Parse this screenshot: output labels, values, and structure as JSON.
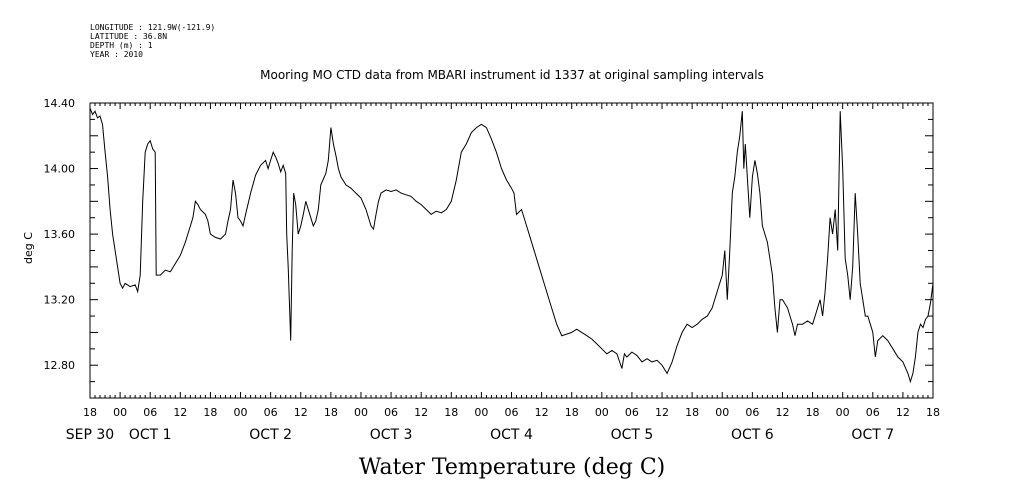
{
  "meta": {
    "longitude": "LONGITUDE : 121.9W(-121.9)",
    "latitude": "LATITUDE : 36.8N",
    "depth": "DEPTH (m) : 1",
    "year": "YEAR : 2010"
  },
  "chart_data": {
    "type": "line",
    "title": "Mooring MO CTD data from MBARI instrument id 1337 at original sampling intervals",
    "xlabel": "Water Temperature (deg C)",
    "ylabel": "deg C",
    "xlim_hours": [
      0,
      168
    ],
    "x_start": "SEP 30 18:00",
    "ylim": [
      12.6,
      14.4
    ],
    "y_ticks": [
      "12.80",
      "13.20",
      "13.60",
      "14.00",
      "14.40"
    ],
    "y_tick_values": [
      12.8,
      13.2,
      13.6,
      14.0,
      14.4
    ],
    "x_hour_labels": [
      "18",
      "00",
      "06",
      "12",
      "18",
      "00",
      "06",
      "12",
      "18",
      "00",
      "06",
      "12",
      "18",
      "00",
      "06",
      "12",
      "18",
      "00",
      "06",
      "12",
      "18",
      "00",
      "06",
      "12",
      "18",
      "00",
      "06",
      "12",
      "18"
    ],
    "day_labels": [
      "SEP 30",
      "OCT  1",
      "OCT  2",
      "OCT  3",
      "OCT  4",
      "OCT  5",
      "OCT  6",
      "OCT  7"
    ],
    "day_label_hours": [
      0,
      12,
      36,
      60,
      84,
      108,
      132,
      156
    ],
    "series": [
      {
        "color": "#000000",
        "points": [
          [
            0,
            14.37
          ],
          [
            0.5,
            14.33
          ],
          [
            1,
            14.35
          ],
          [
            1.5,
            14.31
          ],
          [
            2,
            14.32
          ],
          [
            2.5,
            14.27
          ],
          [
            3,
            14.1
          ],
          [
            3.5,
            13.95
          ],
          [
            4,
            13.75
          ],
          [
            4.5,
            13.6
          ],
          [
            5,
            13.5
          ],
          [
            5.5,
            13.4
          ],
          [
            6,
            13.3
          ],
          [
            6.5,
            13.27
          ],
          [
            7,
            13.3
          ],
          [
            8,
            13.28
          ],
          [
            9,
            13.29
          ],
          [
            9.5,
            13.25
          ],
          [
            10,
            13.35
          ],
          [
            10.5,
            13.8
          ],
          [
            11,
            14.1
          ],
          [
            11.5,
            14.15
          ],
          [
            12,
            14.17
          ],
          [
            12.5,
            14.12
          ],
          [
            13,
            14.1
          ],
          [
            13.2,
            13.35
          ],
          [
            14,
            13.35
          ],
          [
            15,
            13.38
          ],
          [
            16,
            13.37
          ],
          [
            17,
            13.42
          ],
          [
            18,
            13.47
          ],
          [
            19,
            13.55
          ],
          [
            20,
            13.65
          ],
          [
            20.5,
            13.7
          ],
          [
            21,
            13.8
          ],
          [
            21.5,
            13.78
          ],
          [
            22,
            13.75
          ],
          [
            23,
            13.72
          ],
          [
            23.5,
            13.68
          ],
          [
            24,
            13.6
          ],
          [
            25,
            13.58
          ],
          [
            26,
            13.57
          ],
          [
            27,
            13.6
          ],
          [
            27.5,
            13.68
          ],
          [
            28,
            13.75
          ],
          [
            28.5,
            13.93
          ],
          [
            29,
            13.85
          ],
          [
            29.5,
            13.7
          ],
          [
            30,
            13.68
          ],
          [
            30.5,
            13.65
          ],
          [
            31,
            13.72
          ],
          [
            32,
            13.85
          ],
          [
            33,
            13.96
          ],
          [
            34,
            14.02
          ],
          [
            35,
            14.05
          ],
          [
            35.5,
            14.0
          ],
          [
            36,
            14.05
          ],
          [
            36.5,
            14.1
          ],
          [
            37,
            14.07
          ],
          [
            37.5,
            14.03
          ],
          [
            38,
            13.98
          ],
          [
            38.5,
            14.02
          ],
          [
            39,
            13.97
          ],
          [
            39.2,
            13.6
          ],
          [
            39.5,
            13.4
          ],
          [
            40,
            12.95
          ],
          [
            40.3,
            13.5
          ],
          [
            40.6,
            13.85
          ],
          [
            41,
            13.78
          ],
          [
            41.5,
            13.6
          ],
          [
            42,
            13.65
          ],
          [
            42.5,
            13.72
          ],
          [
            43,
            13.8
          ],
          [
            43.5,
            13.75
          ],
          [
            44,
            13.7
          ],
          [
            44.5,
            13.65
          ],
          [
            45,
            13.68
          ],
          [
            45.5,
            13.75
          ],
          [
            46,
            13.9
          ],
          [
            47,
            13.97
          ],
          [
            47.5,
            14.05
          ],
          [
            48,
            14.25
          ],
          [
            48.5,
            14.15
          ],
          [
            49,
            14.08
          ],
          [
            49.5,
            14.0
          ],
          [
            50,
            13.95
          ],
          [
            51,
            13.9
          ],
          [
            52,
            13.88
          ],
          [
            53,
            13.85
          ],
          [
            54,
            13.82
          ],
          [
            55,
            13.75
          ],
          [
            56,
            13.65
          ],
          [
            56.5,
            13.63
          ],
          [
            57,
            13.72
          ],
          [
            57.5,
            13.8
          ],
          [
            58,
            13.85
          ],
          [
            59,
            13.87
          ],
          [
            60,
            13.86
          ],
          [
            61,
            13.87
          ],
          [
            62,
            13.85
          ],
          [
            63,
            13.84
          ],
          [
            64,
            13.83
          ],
          [
            65,
            13.8
          ],
          [
            66,
            13.78
          ],
          [
            67,
            13.75
          ],
          [
            68,
            13.72
          ],
          [
            69,
            13.74
          ],
          [
            70,
            13.73
          ],
          [
            71,
            13.75
          ],
          [
            72,
            13.8
          ],
          [
            73,
            13.93
          ],
          [
            74,
            14.1
          ],
          [
            75,
            14.15
          ],
          [
            76,
            14.22
          ],
          [
            77,
            14.25
          ],
          [
            78,
            14.27
          ],
          [
            79,
            14.25
          ],
          [
            80,
            14.18
          ],
          [
            81,
            14.1
          ],
          [
            82,
            14.0
          ],
          [
            83,
            13.93
          ],
          [
            84,
            13.88
          ],
          [
            84.5,
            13.85
          ],
          [
            85,
            13.72
          ],
          [
            86,
            13.75
          ],
          [
            87,
            13.65
          ],
          [
            88,
            13.55
          ],
          [
            89,
            13.45
          ],
          [
            90,
            13.35
          ],
          [
            91,
            13.25
          ],
          [
            92,
            13.15
          ],
          [
            93,
            13.05
          ],
          [
            94,
            12.98
          ],
          [
            95,
            12.99
          ],
          [
            96,
            13.0
          ],
          [
            97,
            13.02
          ],
          [
            98,
            13.0
          ],
          [
            99,
            12.98
          ],
          [
            100,
            12.96
          ],
          [
            101,
            12.93
          ],
          [
            102,
            12.9
          ],
          [
            103,
            12.87
          ],
          [
            104,
            12.89
          ],
          [
            105,
            12.87
          ],
          [
            106,
            12.78
          ],
          [
            106.5,
            12.87
          ],
          [
            107,
            12.85
          ],
          [
            108,
            12.88
          ],
          [
            109,
            12.86
          ],
          [
            110,
            12.82
          ],
          [
            111,
            12.84
          ],
          [
            112,
            12.82
          ],
          [
            113,
            12.83
          ],
          [
            114,
            12.8
          ],
          [
            115,
            12.75
          ],
          [
            116,
            12.82
          ],
          [
            117,
            12.92
          ],
          [
            118,
            13.0
          ],
          [
            119,
            13.05
          ],
          [
            120,
            13.03
          ],
          [
            121,
            13.05
          ],
          [
            122,
            13.08
          ],
          [
            123,
            13.1
          ],
          [
            124,
            13.15
          ],
          [
            125,
            13.25
          ],
          [
            125.5,
            13.3
          ],
          [
            126,
            13.35
          ],
          [
            126.5,
            13.5
          ],
          [
            127,
            13.2
          ],
          [
            127.5,
            13.5
          ],
          [
            128,
            13.85
          ],
          [
            128.5,
            13.95
          ],
          [
            129,
            14.1
          ],
          [
            129.5,
            14.2
          ],
          [
            130,
            14.35
          ],
          [
            130.3,
            14.0
          ],
          [
            130.6,
            14.15
          ],
          [
            131,
            13.95
          ],
          [
            131.5,
            13.7
          ],
          [
            132,
            13.95
          ],
          [
            132.5,
            14.05
          ],
          [
            133,
            13.97
          ],
          [
            133.5,
            13.85
          ],
          [
            134,
            13.65
          ],
          [
            134.5,
            13.6
          ],
          [
            135,
            13.55
          ],
          [
            135.5,
            13.45
          ],
          [
            136,
            13.35
          ],
          [
            136.5,
            13.15
          ],
          [
            137,
            13.0
          ],
          [
            137.5,
            13.2
          ],
          [
            138,
            13.2
          ],
          [
            139,
            13.15
          ],
          [
            140,
            13.05
          ],
          [
            140.5,
            12.98
          ],
          [
            141,
            13.05
          ],
          [
            142,
            13.05
          ],
          [
            143,
            13.07
          ],
          [
            144,
            13.05
          ],
          [
            144.5,
            13.1
          ],
          [
            145,
            13.15
          ],
          [
            145.5,
            13.2
          ],
          [
            146,
            13.1
          ],
          [
            146.5,
            13.25
          ],
          [
            147,
            13.45
          ],
          [
            147.5,
            13.7
          ],
          [
            148,
            13.6
          ],
          [
            148.5,
            13.75
          ],
          [
            149,
            13.5
          ],
          [
            149.5,
            14.35
          ],
          [
            150,
            14.0
          ],
          [
            150.5,
            13.45
          ],
          [
            151,
            13.35
          ],
          [
            151.5,
            13.2
          ],
          [
            152,
            13.4
          ],
          [
            152.5,
            13.85
          ],
          [
            153,
            13.6
          ],
          [
            153.5,
            13.3
          ],
          [
            154,
            13.2
          ],
          [
            154.5,
            13.1
          ],
          [
            155,
            13.1
          ],
          [
            155.5,
            13.05
          ],
          [
            156,
            13.0
          ],
          [
            156.5,
            12.85
          ],
          [
            157,
            12.95
          ],
          [
            158,
            12.98
          ],
          [
            159,
            12.95
          ],
          [
            160,
            12.9
          ],
          [
            161,
            12.85
          ],
          [
            162,
            12.82
          ],
          [
            163,
            12.75
          ],
          [
            163.5,
            12.7
          ],
          [
            164,
            12.75
          ],
          [
            164.5,
            12.85
          ],
          [
            165,
            13.0
          ],
          [
            165.5,
            13.05
          ],
          [
            166,
            13.03
          ],
          [
            166.5,
            13.08
          ],
          [
            167,
            13.1
          ],
          [
            167.5,
            13.18
          ],
          [
            168,
            13.3
          ]
        ]
      }
    ]
  }
}
